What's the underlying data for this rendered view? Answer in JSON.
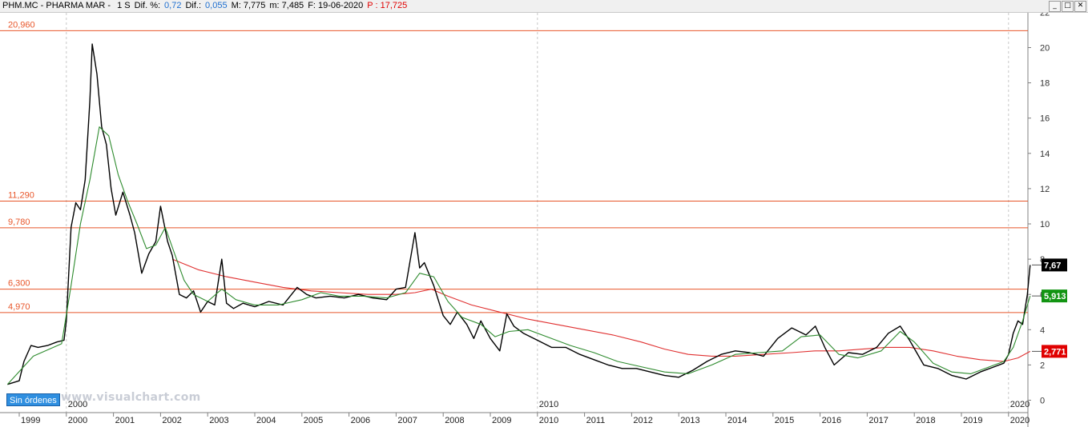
{
  "header": {
    "symbol": "PHM.MC - PHARMA MAR - ",
    "period": "1 S",
    "dif_pct_label": "Dif. %:",
    "dif_pct_value": "0,72",
    "dif_label": "Dif.:",
    "dif_value": "0,055",
    "max_label": "M: 7,775",
    "min_label": "m: 7,485",
    "date_label": "F: 19-06-2020",
    "p_label": "P : 17,725"
  },
  "window_buttons": [
    "_",
    "□",
    "✕"
  ],
  "orders_button": "Sin órdenes",
  "watermark": "www.visualchart.com",
  "colors": {
    "price": "#000000",
    "ma_fast": "#2e8b2e",
    "ma_slow": "#e03030",
    "hlines": "#e8562a",
    "last_price_bg": "#000000",
    "ma_fast_bg": "#129412",
    "ma_slow_bg": "#e00000"
  },
  "chart_data": {
    "type": "line",
    "ylim": [
      -0.5,
      22
    ],
    "y_ticks": [
      0,
      2,
      4,
      6,
      8,
      10,
      12,
      14,
      16,
      18,
      20,
      22
    ],
    "year_labels": [
      "1999",
      "2000",
      "2001",
      "2002",
      "2003",
      "2004",
      "2005",
      "2006",
      "2007",
      "2008",
      "2009",
      "2010",
      "2011",
      "2012",
      "2013",
      "2014",
      "2015",
      "2016",
      "2017",
      "2018",
      "2019",
      "2020"
    ],
    "decade_labels": [
      "2000",
      "2010",
      "2020"
    ],
    "horizontal_levels": [
      {
        "label": "20,960",
        "value": 20.96
      },
      {
        "label": "11,290",
        "value": 11.29
      },
      {
        "label": "9,780",
        "value": 9.78
      },
      {
        "label": "6,300",
        "value": 6.3
      },
      {
        "label": "4,970",
        "value": 4.97
      }
    ],
    "price_tags": [
      {
        "label": "7,67",
        "value": 7.67
      },
      {
        "label": "5,913",
        "value": 5.913
      },
      {
        "label": "2,771",
        "value": 2.771
      }
    ],
    "series": [
      {
        "name": "price",
        "x": [
          1998.75,
          1999.0,
          1999.1,
          1999.25,
          1999.4,
          1999.6,
          1999.8,
          1999.95,
          2000.0,
          2000.1,
          2000.2,
          2000.3,
          2000.4,
          2000.5,
          2000.55,
          2000.65,
          2000.75,
          2000.85,
          2000.95,
          2001.05,
          2001.2,
          2001.35,
          2001.45,
          2001.6,
          2001.75,
          2001.9,
          2002.0,
          2002.15,
          2002.25,
          2002.4,
          2002.55,
          2002.7,
          2002.85,
          2003.0,
          2003.15,
          2003.3,
          2003.4,
          2003.55,
          2003.75,
          2004.0,
          2004.3,
          2004.6,
          2004.9,
          2005.1,
          2005.3,
          2005.6,
          2005.9,
          2006.2,
          2006.5,
          2006.8,
          2007.0,
          2007.2,
          2007.4,
          2007.5,
          2007.6,
          2007.8,
          2008.0,
          2008.15,
          2008.3,
          2008.5,
          2008.65,
          2008.8,
          2009.0,
          2009.2,
          2009.35,
          2009.5,
          2009.7,
          2010.0,
          2010.3,
          2010.6,
          2010.9,
          2011.2,
          2011.5,
          2011.8,
          2012.1,
          2012.4,
          2012.7,
          2013.0,
          2013.3,
          2013.6,
          2013.9,
          2014.2,
          2014.5,
          2014.8,
          2015.1,
          2015.4,
          2015.7,
          2015.9,
          2016.1,
          2016.3,
          2016.6,
          2016.9,
          2017.2,
          2017.45,
          2017.7,
          2017.9,
          2018.2,
          2018.5,
          2018.8,
          2019.1,
          2019.4,
          2019.7,
          2019.9,
          2020.0,
          2020.1,
          2020.2,
          2020.3,
          2020.4,
          2020.46
        ],
        "values": [
          0.9,
          1.1,
          2.2,
          3.1,
          3.0,
          3.1,
          3.3,
          3.4,
          4.5,
          9.8,
          11.2,
          10.8,
          12.5,
          17.0,
          20.2,
          18.5,
          15.5,
          14.5,
          12.0,
          10.5,
          11.8,
          10.5,
          9.5,
          7.2,
          8.3,
          9.0,
          11.0,
          9.0,
          8.2,
          6.0,
          5.8,
          6.2,
          5.0,
          5.6,
          5.4,
          8.0,
          5.5,
          5.2,
          5.5,
          5.3,
          5.6,
          5.4,
          6.4,
          6.0,
          5.8,
          5.9,
          5.8,
          6.0,
          5.8,
          5.7,
          6.3,
          6.4,
          9.5,
          7.5,
          7.8,
          6.5,
          4.8,
          4.3,
          5.0,
          4.3,
          3.5,
          4.5,
          3.5,
          2.8,
          4.9,
          4.2,
          3.8,
          3.4,
          3.0,
          3.0,
          2.6,
          2.3,
          2.0,
          1.8,
          1.8,
          1.6,
          1.4,
          1.3,
          1.7,
          2.2,
          2.6,
          2.8,
          2.7,
          2.5,
          3.5,
          4.1,
          3.7,
          4.2,
          3.0,
          2.0,
          2.7,
          2.6,
          3.0,
          3.8,
          4.2,
          3.4,
          2.0,
          1.8,
          1.4,
          1.2,
          1.6,
          1.9,
          2.1,
          2.6,
          3.8,
          4.5,
          4.3,
          6.0,
          7.67
        ]
      },
      {
        "name": "ma_fast",
        "x": [
          1998.75,
          1999.3,
          1999.9,
          2000.1,
          2000.3,
          2000.5,
          2000.7,
          2000.9,
          2001.1,
          2001.3,
          2001.5,
          2001.7,
          2001.9,
          2002.1,
          2002.3,
          2002.5,
          2002.7,
          2003.0,
          2003.3,
          2003.6,
          2004.0,
          2004.5,
          2005.0,
          2005.4,
          2005.8,
          2006.3,
          2006.8,
          2007.2,
          2007.5,
          2007.8,
          2008.1,
          2008.4,
          2008.8,
          2009.1,
          2009.4,
          2009.8,
          2010.2,
          2010.7,
          2011.2,
          2011.7,
          2012.2,
          2012.7,
          2013.2,
          2013.7,
          2014.2,
          2014.7,
          2015.2,
          2015.6,
          2016.0,
          2016.4,
          2016.8,
          2017.3,
          2017.7,
          2018.0,
          2018.4,
          2018.8,
          2019.2,
          2019.6,
          2019.9,
          2020.1,
          2020.3,
          2020.46
        ],
        "values": [
          0.9,
          2.5,
          3.2,
          6.5,
          10.0,
          12.5,
          15.5,
          15.0,
          12.8,
          11.3,
          10.0,
          8.6,
          8.8,
          9.8,
          8.3,
          6.8,
          6.0,
          5.6,
          6.3,
          5.7,
          5.4,
          5.4,
          5.7,
          6.1,
          5.9,
          5.9,
          5.8,
          6.1,
          7.2,
          7.0,
          5.6,
          4.7,
          4.3,
          3.6,
          3.9,
          4.0,
          3.6,
          3.1,
          2.7,
          2.2,
          1.9,
          1.6,
          1.5,
          2.0,
          2.6,
          2.7,
          2.8,
          3.6,
          3.7,
          2.6,
          2.4,
          2.8,
          3.9,
          3.3,
          2.1,
          1.6,
          1.5,
          1.9,
          2.2,
          3.0,
          4.5,
          5.913
        ]
      },
      {
        "name": "ma_slow",
        "x": [
          2002.25,
          2002.8,
          2003.4,
          2004.0,
          2004.6,
          2005.2,
          2005.8,
          2006.4,
          2007.0,
          2007.4,
          2007.75,
          2008.1,
          2008.6,
          2009.2,
          2009.8,
          2010.4,
          2011.0,
          2011.6,
          2012.2,
          2012.7,
          2013.2,
          2013.7,
          2014.2,
          2014.8,
          2015.4,
          2015.9,
          2016.4,
          2016.9,
          2017.4,
          2017.9,
          2018.4,
          2018.9,
          2019.4,
          2019.9,
          2020.2,
          2020.46
        ],
        "values": [
          8.0,
          7.4,
          7.0,
          6.7,
          6.4,
          6.2,
          6.1,
          6.0,
          6.0,
          6.1,
          6.3,
          5.9,
          5.4,
          5.0,
          4.6,
          4.3,
          4.0,
          3.7,
          3.3,
          2.9,
          2.6,
          2.5,
          2.5,
          2.6,
          2.7,
          2.8,
          2.8,
          2.9,
          3.0,
          3.0,
          2.8,
          2.5,
          2.3,
          2.2,
          2.4,
          2.771
        ]
      }
    ]
  }
}
